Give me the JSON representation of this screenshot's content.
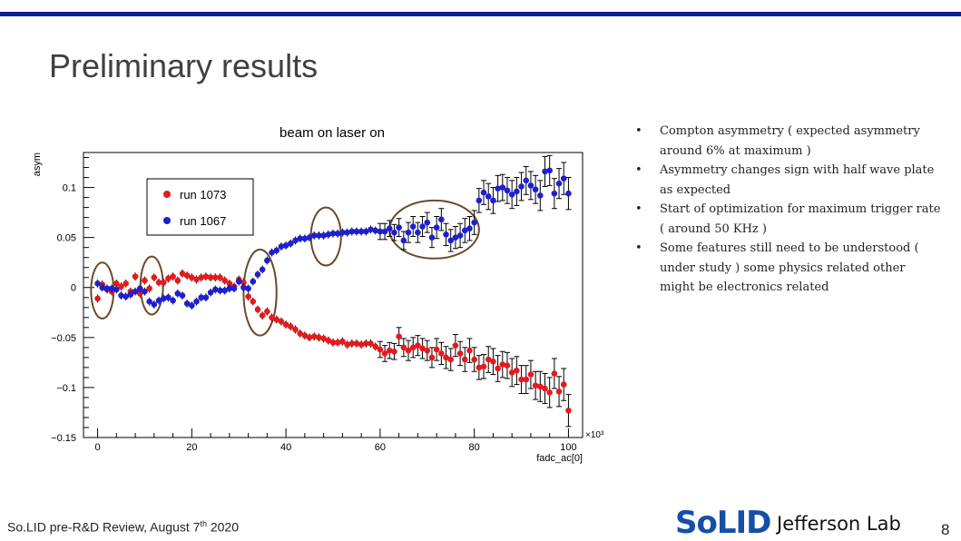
{
  "slide": {
    "title": "Preliminary results",
    "accent_color": "#0a1f8f",
    "footer_text_pre": "So.LID pre-R&D Review, August 7",
    "footer_sup": "th",
    "footer_text_post": " 2020",
    "page_number": "8",
    "logos": {
      "solid": "SoLID",
      "jlab": "Jefferson Lab"
    }
  },
  "bullets": [
    "Compton asymmetry ( expected asymmetry around 6% at maximum )",
    "Asymmetry changes sign with half wave plate as expected",
    "Start of optimization for maximum trigger rate ( around 50 KHz )",
    "Some features still need to be understood ( under study ) some physics related other might be electronics related"
  ],
  "chart_data": {
    "type": "scatter",
    "title": "beam on laser on",
    "xlabel": "fadc_ac[0]",
    "ylabel": "asym",
    "x_multiplier": "×10³",
    "xlim": [
      -3,
      103
    ],
    "ylim": [
      -0.15,
      0.135
    ],
    "x_ticks": [
      0,
      20,
      40,
      60,
      80,
      100
    ],
    "y_ticks": [
      0.1,
      0.05,
      0,
      -0.05,
      -0.1,
      -0.15
    ],
    "y_tick_labels": [
      "0.1",
      "0.05",
      "0",
      "−0.05",
      "−0.1",
      "−0.15"
    ],
    "legend": [
      {
        "label": "run 1073",
        "color": "#e41a1c"
      },
      {
        "label": "run 1067",
        "color": "#1f1fd0"
      }
    ],
    "highlight_ellipses": [
      {
        "cx": 1,
        "cy": -0.003,
        "rx": 2.4,
        "ry": 0.028
      },
      {
        "cx": 11.5,
        "cy": 0.002,
        "rx": 2.4,
        "ry": 0.029
      },
      {
        "cx": 34.5,
        "cy": -0.005,
        "rx": 3.5,
        "ry": 0.043
      },
      {
        "cx": 48.5,
        "cy": 0.051,
        "rx": 3.2,
        "ry": 0.029
      },
      {
        "cx": 71.5,
        "cy": 0.058,
        "rx": 9.5,
        "ry": 0.029
      }
    ],
    "series": [
      {
        "name": "run 1073",
        "color": "#e41a1c",
        "x": [
          0,
          1,
          2,
          3,
          4,
          5,
          6,
          7,
          8,
          9,
          10,
          11,
          12,
          13,
          14,
          15,
          16,
          17,
          18,
          19,
          20,
          21,
          22,
          23,
          24,
          25,
          26,
          27,
          28,
          29,
          30,
          31,
          32,
          33,
          34,
          35,
          36,
          37,
          38,
          39,
          40,
          41,
          42,
          43,
          44,
          45,
          46,
          47,
          48,
          49,
          50,
          51,
          52,
          53,
          54,
          55,
          56,
          57,
          58,
          59,
          60,
          61,
          62,
          63,
          64,
          65,
          66,
          67,
          68,
          69,
          70,
          71,
          72,
          73,
          74,
          75,
          76,
          77,
          78,
          79,
          80,
          81,
          82,
          83,
          84,
          85,
          86,
          87,
          88,
          89,
          90,
          91,
          92,
          93,
          94,
          95,
          96,
          97,
          98,
          99,
          100
        ],
        "y": [
          -0.011,
          0.003,
          -0.002,
          -0.004,
          0.004,
          0.001,
          0.004,
          -0.004,
          0.011,
          -0.006,
          0.007,
          -0.001,
          0.01,
          0.005,
          0.005,
          0.009,
          0.011,
          0.007,
          0.014,
          0.012,
          0.01,
          0.008,
          0.01,
          0.011,
          0.01,
          0.01,
          0.01,
          0.007,
          0.004,
          0.001,
          0.008,
          0.005,
          -0.009,
          -0.014,
          -0.022,
          -0.028,
          -0.024,
          -0.03,
          -0.032,
          -0.034,
          -0.037,
          -0.039,
          -0.042,
          -0.046,
          -0.048,
          -0.05,
          -0.049,
          -0.05,
          -0.051,
          -0.053,
          -0.055,
          -0.055,
          -0.054,
          -0.057,
          -0.056,
          -0.056,
          -0.057,
          -0.056,
          -0.056,
          -0.059,
          -0.062,
          -0.066,
          -0.063,
          -0.064,
          -0.049,
          -0.06,
          -0.063,
          -0.06,
          -0.058,
          -0.061,
          -0.063,
          -0.07,
          -0.062,
          -0.066,
          -0.07,
          -0.072,
          -0.058,
          -0.066,
          -0.072,
          -0.063,
          -0.072,
          -0.08,
          -0.079,
          -0.072,
          -0.074,
          -0.081,
          -0.077,
          -0.078,
          -0.085,
          -0.083,
          -0.092,
          -0.092,
          -0.087,
          -0.098,
          -0.099,
          -0.101,
          -0.105,
          -0.086,
          -0.104,
          -0.097,
          -0.123
        ],
        "err": [
          0.004,
          0.004,
          0.004,
          0.004,
          0.004,
          0.004,
          0.004,
          0.004,
          0.004,
          0.004,
          0.004,
          0.004,
          0.004,
          0.004,
          0.004,
          0.004,
          0.004,
          0.004,
          0.004,
          0.004,
          0.004,
          0.004,
          0.004,
          0.004,
          0.004,
          0.004,
          0.004,
          0.004,
          0.004,
          0.004,
          0.004,
          0.004,
          0.004,
          0.004,
          0.004,
          0.004,
          0.004,
          0.004,
          0.004,
          0.004,
          0.004,
          0.004,
          0.004,
          0.004,
          0.004,
          0.004,
          0.004,
          0.004,
          0.004,
          0.004,
          0.004,
          0.004,
          0.004,
          0.004,
          0.004,
          0.004,
          0.004,
          0.004,
          0.004,
          0.004,
          0.008,
          0.008,
          0.008,
          0.008,
          0.009,
          0.009,
          0.01,
          0.01,
          0.01,
          0.01,
          0.01,
          0.01,
          0.011,
          0.011,
          0.011,
          0.011,
          0.011,
          0.012,
          0.012,
          0.012,
          0.012,
          0.012,
          0.012,
          0.013,
          0.013,
          0.013,
          0.013,
          0.013,
          0.014,
          0.014,
          0.014,
          0.014,
          0.014,
          0.014,
          0.015,
          0.015,
          0.015,
          0.015,
          0.015,
          0.016,
          0.016
        ]
      },
      {
        "name": "run 1067",
        "color": "#1f1fd0",
        "x": [
          0,
          1,
          2,
          3,
          4,
          5,
          6,
          7,
          8,
          9,
          10,
          11,
          12,
          13,
          14,
          15,
          16,
          17,
          18,
          19,
          20,
          21,
          22,
          23,
          24,
          25,
          26,
          27,
          28,
          29,
          30,
          31,
          32,
          33,
          34,
          35,
          36,
          37,
          38,
          39,
          40,
          41,
          42,
          43,
          44,
          45,
          46,
          47,
          48,
          49,
          50,
          51,
          52,
          53,
          54,
          55,
          56,
          57,
          58,
          59,
          60,
          61,
          62,
          63,
          64,
          65,
          66,
          67,
          68,
          69,
          70,
          71,
          72,
          73,
          74,
          75,
          76,
          77,
          78,
          79,
          80,
          81,
          82,
          83,
          84,
          85,
          86,
          87,
          88,
          89,
          90,
          91,
          92,
          93,
          94,
          95,
          96,
          97,
          98,
          99,
          100
        ],
        "y": [
          0.004,
          0.0,
          -0.001,
          -0.001,
          -0.002,
          -0.008,
          -0.009,
          -0.007,
          -0.004,
          -0.001,
          -0.004,
          -0.014,
          -0.017,
          -0.013,
          -0.011,
          -0.01,
          -0.013,
          -0.006,
          -0.008,
          -0.016,
          -0.018,
          -0.014,
          -0.01,
          -0.01,
          -0.005,
          -0.002,
          -0.003,
          -0.003,
          -0.001,
          -0.001,
          0.006,
          0.0,
          -0.001,
          0.006,
          0.013,
          0.018,
          0.027,
          0.035,
          0.037,
          0.041,
          0.042,
          0.044,
          0.047,
          0.049,
          0.049,
          0.05,
          0.052,
          0.052,
          0.052,
          0.053,
          0.054,
          0.054,
          0.055,
          0.055,
          0.056,
          0.056,
          0.056,
          0.056,
          0.058,
          0.057,
          0.056,
          0.056,
          0.059,
          0.055,
          0.06,
          0.047,
          0.055,
          0.061,
          0.055,
          0.061,
          0.065,
          0.05,
          0.06,
          0.068,
          0.053,
          0.047,
          0.05,
          0.052,
          0.057,
          0.059,
          0.065,
          0.087,
          0.095,
          0.091,
          0.087,
          0.099,
          0.1,
          0.097,
          0.093,
          0.096,
          0.101,
          0.107,
          0.102,
          0.098,
          0.092,
          0.116,
          0.117,
          0.094,
          0.104,
          0.109,
          0.094
        ],
        "err": [
          0.004,
          0.004,
          0.004,
          0.004,
          0.004,
          0.004,
          0.004,
          0.004,
          0.004,
          0.004,
          0.004,
          0.004,
          0.004,
          0.004,
          0.004,
          0.004,
          0.004,
          0.004,
          0.004,
          0.004,
          0.004,
          0.004,
          0.004,
          0.004,
          0.004,
          0.004,
          0.004,
          0.004,
          0.004,
          0.004,
          0.004,
          0.004,
          0.004,
          0.004,
          0.004,
          0.004,
          0.004,
          0.004,
          0.004,
          0.004,
          0.004,
          0.004,
          0.004,
          0.004,
          0.004,
          0.004,
          0.004,
          0.004,
          0.004,
          0.004,
          0.004,
          0.004,
          0.004,
          0.004,
          0.004,
          0.004,
          0.004,
          0.004,
          0.004,
          0.004,
          0.008,
          0.008,
          0.008,
          0.008,
          0.009,
          0.009,
          0.01,
          0.01,
          0.01,
          0.01,
          0.01,
          0.01,
          0.011,
          0.011,
          0.011,
          0.011,
          0.011,
          0.012,
          0.012,
          0.012,
          0.012,
          0.012,
          0.012,
          0.013,
          0.013,
          0.013,
          0.013,
          0.013,
          0.014,
          0.014,
          0.014,
          0.014,
          0.014,
          0.014,
          0.015,
          0.015,
          0.015,
          0.015,
          0.015,
          0.016,
          0.016
        ]
      }
    ]
  }
}
